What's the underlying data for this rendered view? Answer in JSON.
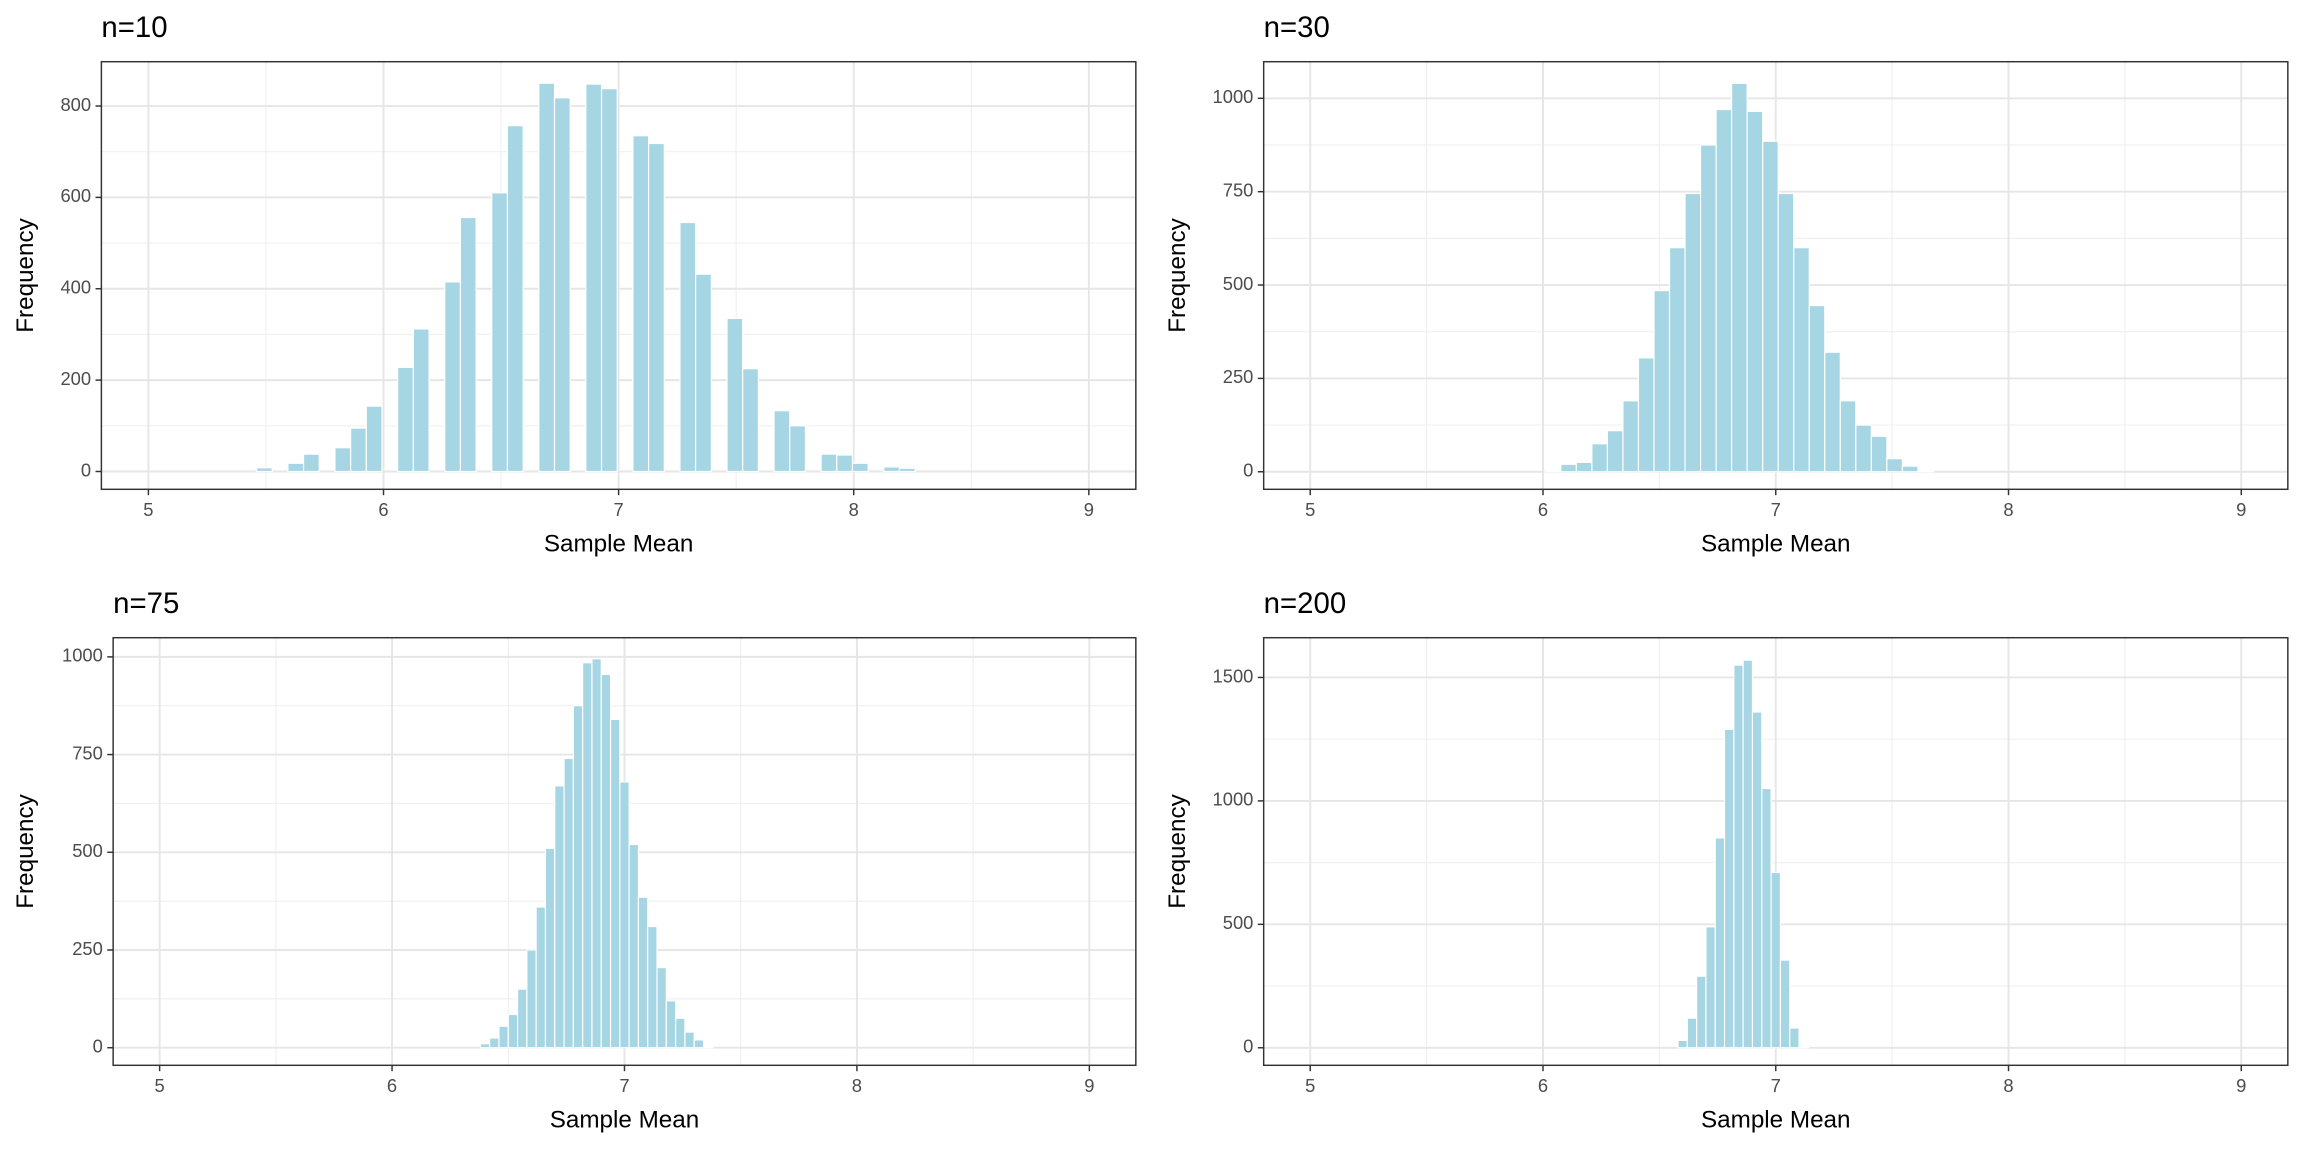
{
  "chart_data": [
    {
      "type": "histogram",
      "title": "n=10",
      "xlabel": "Sample Mean",
      "ylabel": "Frequency",
      "color": "#a6d5e3",
      "bins": [
        5.46,
        5.5267,
        5.5934,
        5.6601,
        5.7268,
        5.7935,
        5.8602,
        5.9269,
        5.9936,
        6.0603,
        6.127,
        6.1937,
        6.2604,
        6.3271,
        6.3938,
        6.4605,
        6.5272,
        6.5939,
        6.6606,
        6.7273,
        6.794,
        6.8607,
        6.9274,
        6.9941,
        7.0608,
        7.1275,
        7.1942,
        7.2609,
        7.3276,
        7.3943,
        7.461,
        7.5277,
        7.5944,
        7.6611,
        7.7278,
        7.7945,
        7.8612,
        7.9279,
        7.9946,
        8.0613,
        8.128,
        8.1947,
        8.2614
      ],
      "counts": [
        8,
        0,
        18,
        38,
        0,
        52,
        95,
        143,
        0,
        228,
        312,
        0,
        415,
        556,
        0,
        610,
        757,
        0,
        850,
        818,
        0,
        848,
        838,
        0,
        735,
        718,
        0,
        545,
        432,
        0,
        335,
        225,
        0,
        133,
        100,
        0,
        38,
        36,
        18,
        0,
        10,
        7
      ],
      "xlim": [
        4.8,
        9.2
      ],
      "xticks": [
        5,
        6,
        7,
        8,
        9
      ],
      "ylim": [
        -39,
        897
      ],
      "yticks": [
        0,
        200,
        400,
        600,
        800
      ],
      "grid": true,
      "minor_grid": true
    },
    {
      "type": "histogram",
      "title": "n=30",
      "xlabel": "Sample Mean",
      "ylabel": "Frequency",
      "color": "#a6d5e3",
      "bins": [
        6.01,
        6.0767,
        6.1434,
        6.2101,
        6.2768,
        6.3435,
        6.4102,
        6.4769,
        6.5436,
        6.6103,
        6.677,
        6.7437,
        6.8104,
        6.8771,
        6.9438,
        7.0105,
        7.0772,
        7.1439,
        7.2106,
        7.2773,
        7.344,
        7.4107,
        7.4774,
        7.5441,
        7.6108,
        7.6775
      ],
      "counts": [
        3,
        20,
        25,
        75,
        110,
        190,
        305,
        485,
        600,
        745,
        875,
        970,
        1040,
        965,
        885,
        745,
        600,
        445,
        320,
        190,
        125,
        95,
        35,
        15,
        3
      ],
      "xlim": [
        4.8,
        9.2
      ],
      "xticks": [
        5,
        6,
        7,
        8,
        9
      ],
      "ylim": [
        -47,
        1098
      ],
      "yticks": [
        0,
        250,
        500,
        750,
        1000
      ],
      "grid": true,
      "minor_grid": true
    },
    {
      "type": "histogram",
      "title": "n=75",
      "xlabel": "Sample Mean",
      "ylabel": "Frequency",
      "color": "#a6d5e3",
      "bins": [
        6.38,
        6.42,
        6.46,
        6.5,
        6.54,
        6.58,
        6.62,
        6.66,
        6.7,
        6.74,
        6.78,
        6.82,
        6.86,
        6.9,
        6.94,
        6.98,
        7.02,
        7.06,
        7.1,
        7.14,
        7.18,
        7.22,
        7.26,
        7.3,
        7.34,
        7.38
      ],
      "counts": [
        10,
        25,
        55,
        85,
        150,
        250,
        360,
        510,
        670,
        740,
        875,
        985,
        995,
        955,
        840,
        680,
        520,
        385,
        310,
        205,
        120,
        75,
        40,
        20,
        3
      ],
      "xlim": [
        4.8,
        9.2
      ],
      "xticks": [
        5,
        6,
        7,
        8,
        9
      ],
      "ylim": [
        -45,
        1049
      ],
      "yticks": [
        0,
        250,
        500,
        750,
        1000
      ],
      "grid": true,
      "minor_grid": true
    },
    {
      "type": "histogram",
      "title": "n=200",
      "xlabel": "Sample Mean",
      "ylabel": "Frequency",
      "color": "#a6d5e3",
      "bins": [
        6.58,
        6.62,
        6.66,
        6.7,
        6.74,
        6.78,
        6.82,
        6.86,
        6.9,
        6.94,
        6.98,
        7.02,
        7.06,
        7.1,
        7.14
      ],
      "counts": [
        30,
        120,
        290,
        490,
        850,
        1290,
        1550,
        1570,
        1360,
        1050,
        710,
        355,
        80,
        5
      ],
      "xlim": [
        4.8,
        9.2
      ],
      "xticks": [
        5,
        6,
        7,
        8,
        9
      ],
      "ylim": [
        -71,
        1661
      ],
      "yticks": [
        0,
        500,
        1000,
        1500
      ],
      "grid": true,
      "minor_grid": true
    }
  ]
}
